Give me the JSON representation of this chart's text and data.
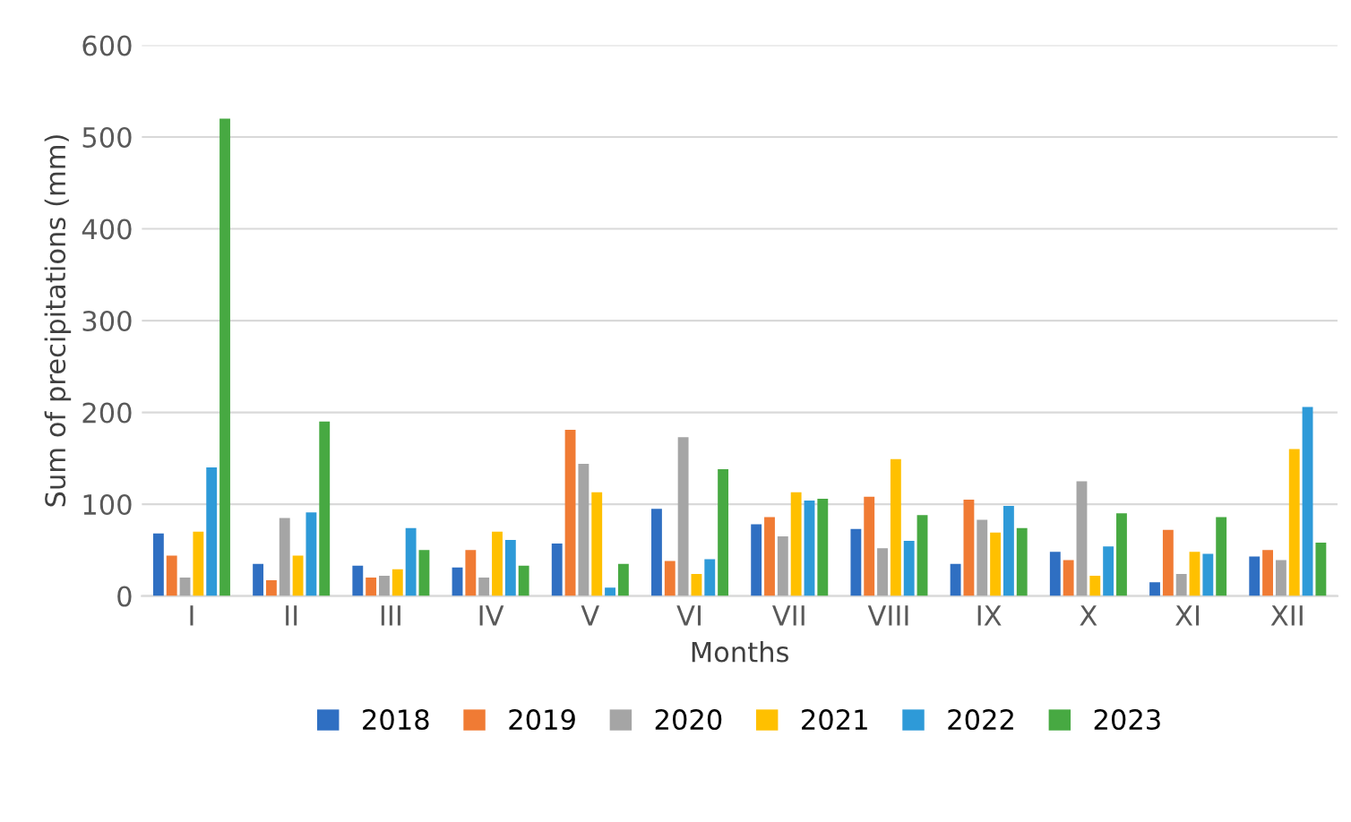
{
  "chart_data": {
    "type": "bar",
    "xlabel": "Months",
    "ylabel": "Sum of precipitations (mm)",
    "categories": [
      "I",
      "II",
      "III",
      "IV",
      "V",
      "VI",
      "VII",
      "VIII",
      "IX",
      "X",
      "XI",
      "XII"
    ],
    "series": [
      {
        "name": "2018",
        "color": "#2f6fc2",
        "values": [
          68,
          35,
          33,
          31,
          57,
          95,
          78,
          73,
          35,
          48,
          15,
          43
        ]
      },
      {
        "name": "2019",
        "color": "#f07b34",
        "values": [
          44,
          17,
          20,
          50,
          181,
          38,
          86,
          108,
          105,
          39,
          72,
          50
        ]
      },
      {
        "name": "2020",
        "color": "#a5a5a5",
        "values": [
          20,
          85,
          22,
          20,
          144,
          173,
          65,
          52,
          83,
          125,
          24,
          39
        ]
      },
      {
        "name": "2021",
        "color": "#ffc000",
        "values": [
          70,
          44,
          29,
          70,
          113,
          24,
          113,
          149,
          69,
          22,
          48,
          160
        ]
      },
      {
        "name": "2022",
        "color": "#2e9ad8",
        "values": [
          140,
          91,
          74,
          61,
          9,
          40,
          104,
          60,
          98,
          54,
          46,
          206
        ]
      },
      {
        "name": "2023",
        "color": "#47a942",
        "values": [
          520,
          190,
          50,
          33,
          35,
          138,
          106,
          88,
          74,
          90,
          86,
          58
        ]
      }
    ],
    "ylim": [
      0,
      600
    ],
    "yticks": [
      0,
      100,
      200,
      300,
      400,
      500,
      600
    ],
    "grid": "y",
    "legend": "bottom"
  }
}
